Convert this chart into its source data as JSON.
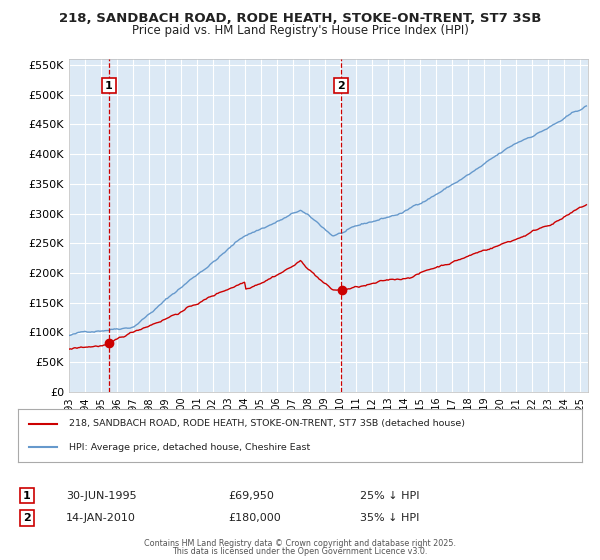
{
  "title_line1": "218, SANDBACH ROAD, RODE HEATH, STOKE-ON-TRENT, ST7 3SB",
  "title_line2": "Price paid vs. HM Land Registry's House Price Index (HPI)",
  "legend_label_red": "218, SANDBACH ROAD, RODE HEATH, STOKE-ON-TRENT, ST7 3SB (detached house)",
  "legend_label_blue": "HPI: Average price, detached house, Cheshire East",
  "marker1_date": 1995.5,
  "marker1_price_red": 69950,
  "marker1_row": "30-JUN-1995",
  "marker1_price_str": "£69,950",
  "marker1_pct": "25% ↓ HPI",
  "marker2_date": 2010.04,
  "marker2_price_red": 180000,
  "marker2_row": "14-JAN-2010",
  "marker2_price_str": "£180,000",
  "marker2_pct": "35% ↓ HPI",
  "ylim": [
    0,
    560000
  ],
  "yticks": [
    0,
    50000,
    100000,
    150000,
    200000,
    250000,
    300000,
    350000,
    400000,
    450000,
    500000,
    550000
  ],
  "xlim": [
    1993.0,
    2025.5
  ],
  "bg_color": "#ffffff",
  "plot_bg": "#dce9f5",
  "grid_color": "#ffffff",
  "red_color": "#cc0000",
  "blue_color": "#6699cc",
  "footer_line1": "Contains HM Land Registry data © Crown copyright and database right 2025.",
  "footer_line2": "This data is licensed under the Open Government Licence v3.0."
}
